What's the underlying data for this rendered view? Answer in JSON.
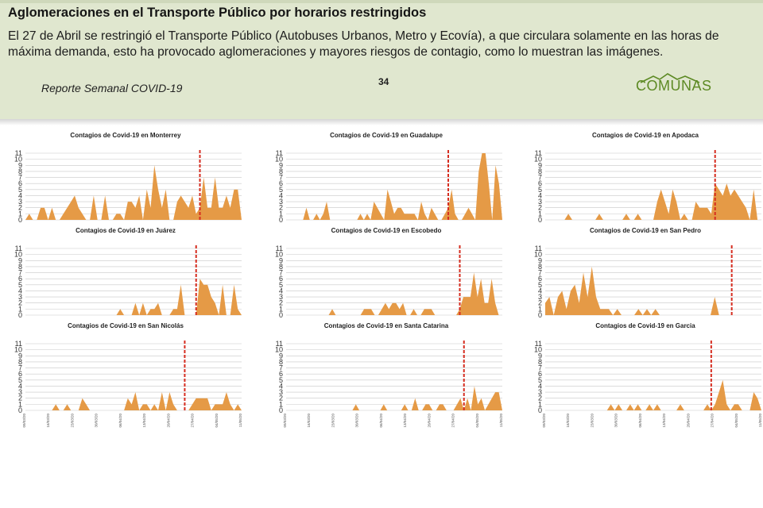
{
  "header": {
    "title": "Aglomeraciones en el Transporte Público por horarios restringidos",
    "body": "El 27 de Abril se restringió el Transporte Público (Autobuses Urbanos, Metro y Ecovía), a que circulara solamente en las horas de máxima demanda, esto ha provocado aglomeraciones y mayores riesgos de contagio, como lo muestran las imágenes.",
    "footer": "Reporte Semanal COVID-19",
    "page_number": "34",
    "logo": "COMUNAS"
  },
  "colors": {
    "area": "#e59a46",
    "marker": "#d62d20",
    "grid": "#c8c8c8",
    "logo": "#5d8a24"
  },
  "chart_data": [
    {
      "type": "area",
      "title": "Contagios de Covid-19 en Monterrey",
      "ylim": [
        0,
        11
      ],
      "yticks": [
        0,
        1,
        2,
        3,
        4,
        5,
        6,
        7,
        8,
        9,
        10,
        11
      ],
      "values": [
        0,
        1,
        0,
        0,
        2,
        2,
        0,
        2,
        0,
        0,
        1,
        2,
        3,
        4,
        2,
        1,
        0,
        0,
        4,
        0,
        0,
        4,
        0,
        0,
        1,
        1,
        0,
        3,
        3,
        2,
        4,
        0,
        5,
        2,
        9,
        5,
        2,
        5,
        0,
        0,
        3,
        4,
        3,
        2,
        4,
        1,
        2,
        7,
        2,
        2,
        7,
        2,
        2,
        4,
        2,
        5,
        5,
        0
      ],
      "marker_index": 46
    },
    {
      "type": "area",
      "title": "Contagios de Covid-19 en Guadalupe",
      "ylim": [
        0,
        11
      ],
      "yticks": [
        0,
        1,
        2,
        3,
        4,
        5,
        6,
        7,
        8,
        9,
        10,
        11
      ],
      "values": [
        0,
        0,
        0,
        0,
        0,
        0,
        2,
        0,
        0,
        1,
        0,
        1,
        3,
        0,
        0,
        0,
        0,
        0,
        0,
        0,
        0,
        0,
        1,
        0,
        1,
        0,
        3,
        2,
        1,
        0,
        5,
        3,
        1,
        2,
        2,
        1,
        1,
        1,
        1,
        0,
        3,
        1,
        0,
        2,
        1,
        0,
        0,
        1,
        2,
        5,
        1,
        0,
        0,
        1,
        2,
        1,
        0,
        8,
        11,
        11,
        6,
        0,
        9,
        6,
        0
      ],
      "marker_index": 48
    },
    {
      "type": "area",
      "title": "Contagios de Covid-19 en Apodaca",
      "ylim": [
        0,
        11
      ],
      "yticks": [
        0,
        1,
        2,
        3,
        4,
        5,
        6,
        7,
        8,
        9,
        10,
        11
      ],
      "values": [
        0,
        0,
        0,
        0,
        0,
        0,
        1,
        0,
        0,
        0,
        0,
        0,
        0,
        0,
        1,
        0,
        0,
        0,
        0,
        0,
        0,
        1,
        0,
        0,
        1,
        0,
        0,
        0,
        0,
        3,
        5,
        3,
        1,
        5,
        3,
        0,
        1,
        0,
        0,
        3,
        2,
        2,
        2,
        1,
        6,
        5,
        4,
        6,
        4,
        5,
        4,
        3,
        2,
        0,
        5,
        0,
        0
      ],
      "marker_index": 44
    },
    {
      "type": "area",
      "title": "Contagios de Covid-19 en Juárez",
      "ylim": [
        0,
        11
      ],
      "yticks": [
        0,
        1,
        2,
        3,
        4,
        5,
        6,
        7,
        8,
        9,
        10,
        11
      ],
      "values": [
        0,
        0,
        0,
        0,
        0,
        0,
        0,
        0,
        0,
        0,
        0,
        0,
        0,
        0,
        0,
        0,
        0,
        0,
        0,
        0,
        0,
        0,
        0,
        0,
        0,
        1,
        0,
        0,
        0,
        2,
        0,
        2,
        0,
        1,
        1,
        2,
        0,
        0,
        0,
        1,
        1,
        5,
        0,
        0,
        0,
        0,
        6,
        5,
        5,
        3,
        2,
        0,
        5,
        0,
        0,
        5,
        1,
        0
      ],
      "marker_index": 45
    },
    {
      "type": "area",
      "title": "Contagios de Covid-19 en Escobedo",
      "ylim": [
        0,
        11
      ],
      "yticks": [
        0,
        1,
        2,
        3,
        4,
        5,
        6,
        7,
        8,
        9,
        10,
        11
      ],
      "values": [
        0,
        0,
        0,
        0,
        0,
        0,
        0,
        0,
        0,
        0,
        0,
        0,
        0,
        1,
        0,
        0,
        0,
        0,
        0,
        0,
        0,
        0,
        1,
        1,
        1,
        0,
        0,
        1,
        2,
        1,
        2,
        2,
        1,
        2,
        0,
        0,
        1,
        0,
        0,
        1,
        1,
        1,
        0,
        0,
        0,
        0,
        0,
        0,
        0,
        1,
        3,
        3,
        3,
        7,
        3,
        6,
        2,
        2,
        6,
        2,
        0,
        0
      ],
      "marker_index": 49
    },
    {
      "type": "area",
      "title": "Contagios de Covid-19 en San Pedro",
      "ylim": [
        0,
        11
      ],
      "yticks": [
        0,
        1,
        2,
        3,
        4,
        5,
        6,
        7,
        8,
        9,
        10,
        11
      ],
      "values": [
        2,
        3,
        0,
        3,
        4,
        1,
        4,
        5,
        2,
        7,
        3,
        8,
        3,
        1,
        1,
        1,
        0,
        1,
        0,
        0,
        0,
        0,
        1,
        0,
        1,
        0,
        1,
        0,
        0,
        0,
        0,
        0,
        0,
        0,
        0,
        0,
        0,
        0,
        0,
        0,
        3,
        0,
        0,
        0,
        0,
        0,
        0,
        0,
        0,
        0,
        0,
        0
      ],
      "marker_index": 44
    },
    {
      "type": "area",
      "title": "Contagios de Covid-19 en San Nicolás",
      "ylim": [
        0,
        11
      ],
      "yticks": [
        0,
        1,
        2,
        3,
        4,
        5,
        6,
        7,
        8,
        9,
        10,
        11
      ],
      "values": [
        0,
        0,
        0,
        0,
        0,
        0,
        0,
        0,
        1,
        0,
        0,
        1,
        0,
        0,
        0,
        2,
        1,
        0,
        0,
        0,
        0,
        0,
        0,
        0,
        0,
        0,
        0,
        2,
        1,
        3,
        0,
        1,
        1,
        0,
        1,
        0,
        3,
        0,
        3,
        1,
        0,
        0,
        0,
        0,
        1,
        2,
        2,
        2,
        2,
        0,
        1,
        1,
        1,
        3,
        1,
        0,
        1,
        0
      ],
      "marker_index": 42
    },
    {
      "type": "area",
      "title": "Contagios de Covid-19 en Santa Catarina",
      "ylim": [
        0,
        11
      ],
      "yticks": [
        0,
        1,
        2,
        3,
        4,
        5,
        6,
        7,
        8,
        9,
        10,
        11
      ],
      "values": [
        0,
        0,
        0,
        0,
        0,
        0,
        0,
        0,
        0,
        0,
        0,
        0,
        0,
        0,
        0,
        0,
        0,
        0,
        0,
        0,
        1,
        0,
        0,
        0,
        0,
        0,
        0,
        0,
        1,
        0,
        0,
        0,
        0,
        0,
        1,
        0,
        0,
        2,
        0,
        0,
        1,
        1,
        0,
        0,
        1,
        1,
        0,
        0,
        0,
        1,
        2,
        0,
        2,
        0,
        4,
        1,
        2,
        0,
        1,
        2,
        3,
        3,
        0
      ],
      "marker_index": 51
    },
    {
      "type": "area",
      "title": "Contagios de Covid-19 en Garcia",
      "ylim": [
        0,
        11
      ],
      "yticks": [
        0,
        1,
        2,
        3,
        4,
        5,
        6,
        7,
        8,
        9,
        10,
        11
      ],
      "values": [
        0,
        0,
        0,
        0,
        0,
        0,
        0,
        0,
        0,
        0,
        0,
        0,
        0,
        0,
        0,
        0,
        0,
        1,
        0,
        1,
        0,
        0,
        1,
        0,
        1,
        0,
        0,
        1,
        0,
        1,
        0,
        0,
        0,
        0,
        0,
        1,
        0,
        0,
        0,
        0,
        0,
        0,
        1,
        0,
        1,
        3,
        5,
        1,
        0,
        1,
        1,
        0,
        0,
        0,
        3,
        2,
        0
      ],
      "marker_index": 43
    }
  ],
  "x_ticks": [
    "09/03/20",
    "16/03/20",
    "23/03/20",
    "30/03/20",
    "06/04/20",
    "13/04/20",
    "20/04/20",
    "27/04/20",
    "04/05/20",
    "11/05/20"
  ]
}
